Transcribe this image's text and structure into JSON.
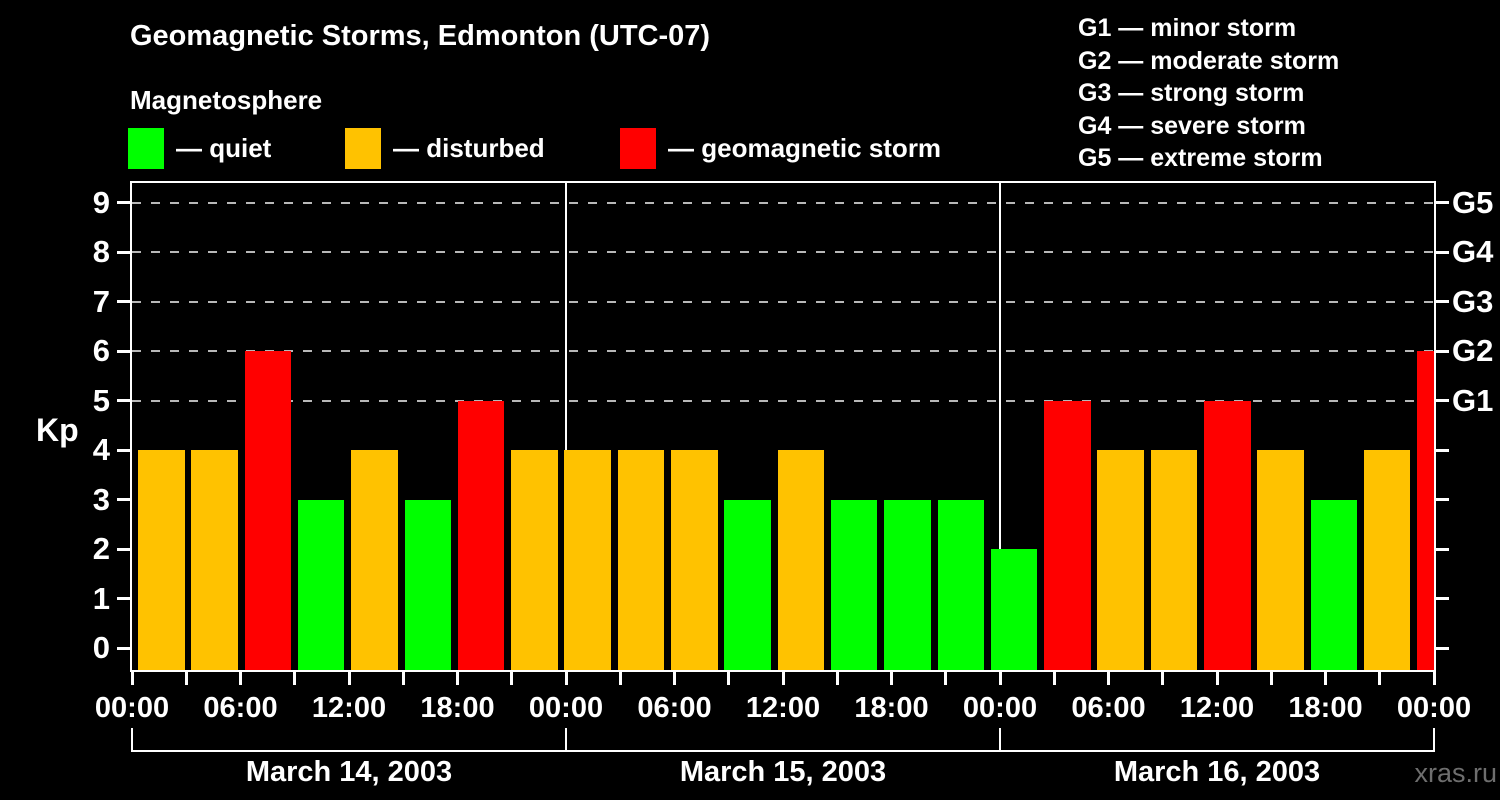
{
  "title": "Geomagnetic Storms, Edmonton (UTC-07)",
  "subtitle": "Magnetosphere",
  "legend": {
    "items": [
      {
        "label": "— quiet",
        "color": "#00ff00"
      },
      {
        "label": "— disturbed",
        "color": "#ffc200"
      },
      {
        "label": "— geomagnetic storm",
        "color": "#ff0000"
      }
    ]
  },
  "g_scale_legend": {
    "lines": [
      "G1 — minor storm",
      "G2 — moderate storm",
      "G3 — strong storm",
      "G4 — severe storm",
      "G5 — extreme storm"
    ]
  },
  "watermark": "xras.ru",
  "chart_data": {
    "type": "bar",
    "title": "Geomagnetic Storms, Edmonton (UTC-07)",
    "subtitle": "Magnetosphere",
    "xlabel": "",
    "ylabel": "Kp",
    "ylim": [
      0,
      9
    ],
    "bar_interval_hours": 3,
    "y_ticks": [
      0,
      1,
      2,
      3,
      4,
      5,
      6,
      7,
      8,
      9
    ],
    "gridlines_at_kp": [
      5,
      6,
      7,
      8,
      9
    ],
    "grid_style": "dashed horizontal lines at storm levels only",
    "right_axis": {
      "labels": [
        "G1",
        "G2",
        "G3",
        "G4",
        "G5"
      ],
      "at_kp": [
        5,
        6,
        7,
        8,
        9
      ]
    },
    "x_tick_labels": [
      "00:00",
      "06:00",
      "12:00",
      "18:00",
      "00:00",
      "06:00",
      "12:00",
      "18:00",
      "00:00",
      "06:00",
      "12:00",
      "18:00",
      "00:00"
    ],
    "days": [
      {
        "date": "March 14, 2003",
        "kp": [
          4,
          4,
          6,
          3,
          4,
          3,
          5,
          4
        ]
      },
      {
        "date": "March 15, 2003",
        "kp": [
          4,
          4,
          4,
          3,
          4,
          3,
          3,
          3
        ]
      },
      {
        "date": "March 16, 2003",
        "kp": [
          2,
          5,
          4,
          4,
          5,
          4,
          3,
          4
        ]
      }
    ],
    "next_interval_partial_kp": 6,
    "colors": {
      "quiet": "#00ff00",
      "disturbed": "#ffc200",
      "storm": "#ff0000"
    },
    "color_rule": "kp<=3 quiet (green), kp==4 disturbed (orange), kp>=5 storm (red)",
    "legend_position": "top-left and top-right"
  }
}
